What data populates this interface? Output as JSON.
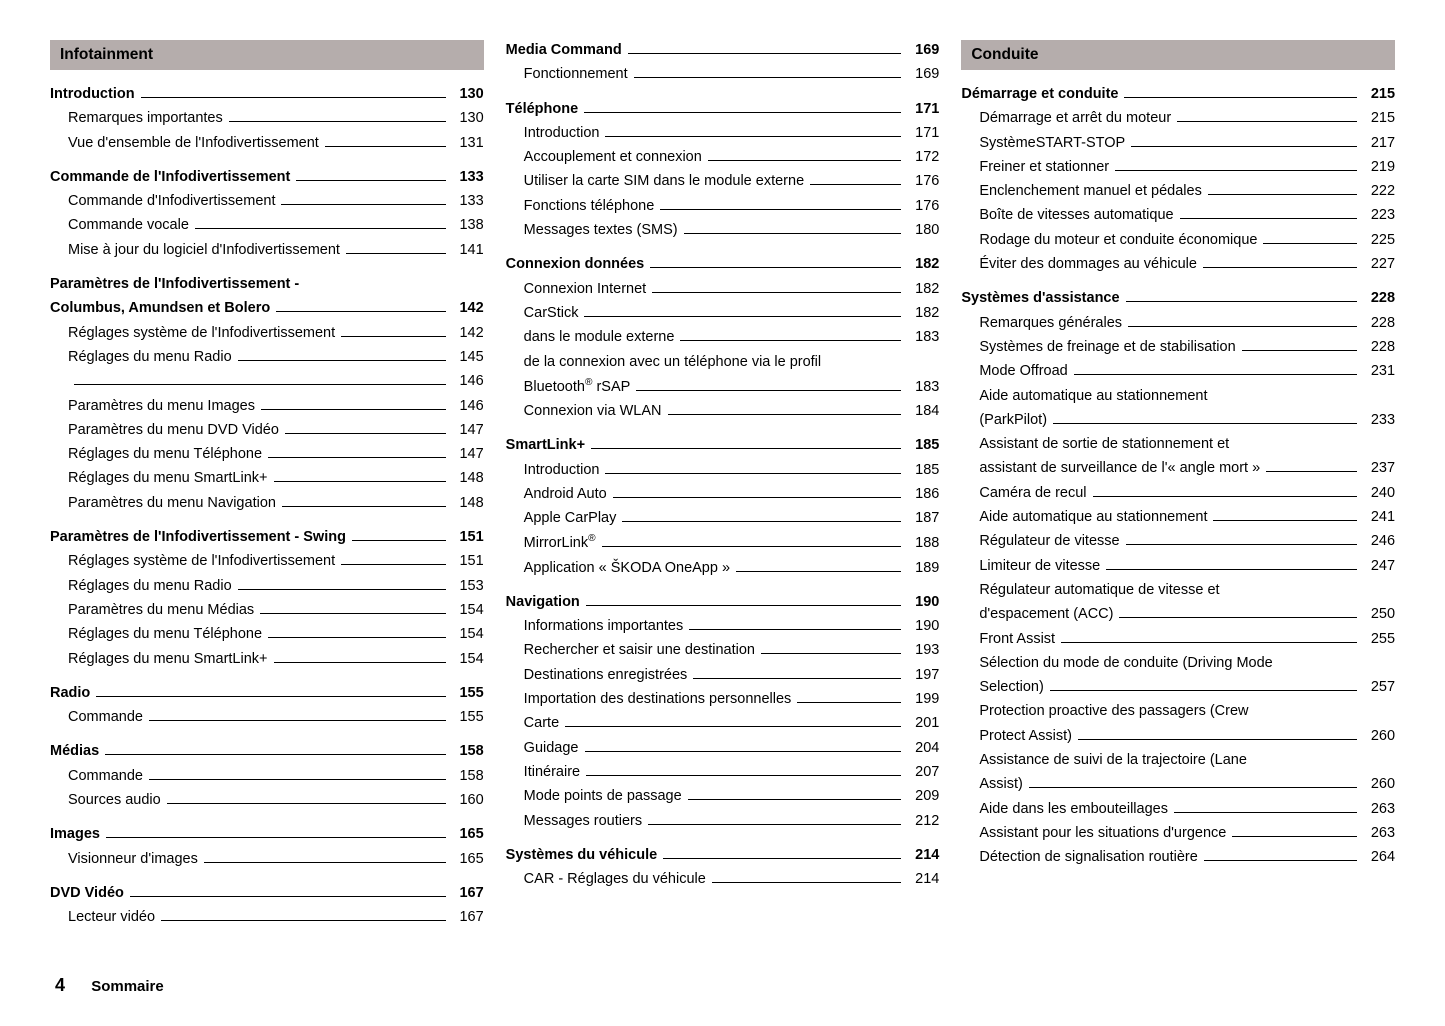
{
  "footer": {
    "page_number": "4",
    "title": "Sommaire"
  },
  "headers": {
    "col1": "Infotainment",
    "col3": "Conduite"
  },
  "col1": [
    {
      "type": "gap"
    },
    {
      "label": "Introduction",
      "page": "130",
      "bold": true
    },
    {
      "label": "Remarques importantes",
      "page": "130",
      "sub": true
    },
    {
      "label": "Vue d'ensemble de l'Infodivertissement",
      "page": "131",
      "sub": true
    },
    {
      "type": "gap"
    },
    {
      "label": "Commande de l'Infodivertissement",
      "page": "133",
      "bold": true
    },
    {
      "label": "Commande d'Infodivertissement",
      "page": "133",
      "sub": true
    },
    {
      "label": "Commande vocale",
      "page": "138",
      "sub": true
    },
    {
      "label": "Mise à jour du logiciel d'Infodivertissement",
      "page": "141",
      "sub": true
    },
    {
      "type": "gap"
    },
    {
      "label": "Paramètres de l'Infodivertissement -",
      "bold": true,
      "nol": true
    },
    {
      "label": "Columbus, Amundsen et Bolero",
      "page": "142",
      "bold": true
    },
    {
      "label": "Réglages système de l'Infodivertissement",
      "page": "142",
      "sub": true
    },
    {
      "label": "Réglages du menu Radio",
      "page": "145",
      "sub": true
    },
    {
      "label": "",
      "page": "146",
      "sub": true
    },
    {
      "label": "Paramètres du menu Images",
      "page": "146",
      "sub": true
    },
    {
      "label": "Paramètres du menu DVD Vidéo",
      "page": "147",
      "sub": true
    },
    {
      "label": "Réglages du menu Téléphone",
      "page": "147",
      "sub": true
    },
    {
      "label": "Réglages du menu SmartLink+",
      "page": "148",
      "sub": true
    },
    {
      "label": "Paramètres du menu Navigation",
      "page": "148",
      "sub": true
    },
    {
      "type": "gap"
    },
    {
      "label": "Paramètres de l'Infodivertissement - Swing",
      "page": "151",
      "bold": true
    },
    {
      "label": "Réglages système de l'Infodivertissement",
      "page": "151",
      "sub": true
    },
    {
      "label": "Réglages du menu Radio",
      "page": "153",
      "sub": true
    },
    {
      "label": "Paramètres du menu Médias",
      "page": "154",
      "sub": true
    },
    {
      "label": "Réglages du menu Téléphone",
      "page": "154",
      "sub": true
    },
    {
      "label": "Réglages du menu SmartLink+",
      "page": "154",
      "sub": true
    },
    {
      "type": "gap"
    },
    {
      "label": "Radio",
      "page": "155",
      "bold": true
    },
    {
      "label": "Commande",
      "page": "155",
      "sub": true
    },
    {
      "type": "gap"
    },
    {
      "label": "Médias",
      "page": "158",
      "bold": true
    },
    {
      "label": "Commande",
      "page": "158",
      "sub": true
    },
    {
      "label": "Sources audio",
      "page": "160",
      "sub": true
    },
    {
      "type": "gap"
    },
    {
      "label": "Images",
      "page": "165",
      "bold": true
    },
    {
      "label": "Visionneur d'images",
      "page": "165",
      "sub": true
    },
    {
      "type": "gap"
    },
    {
      "label": "DVD Vidéo",
      "page": "167",
      "bold": true
    },
    {
      "label": "Lecteur vidéo",
      "page": "167",
      "sub": true
    }
  ],
  "col2": [
    {
      "label": "Media Command",
      "page": "169",
      "bold": true
    },
    {
      "label": "Fonctionnement",
      "page": "169",
      "sub": true
    },
    {
      "type": "gap"
    },
    {
      "label": "Téléphone",
      "page": "171",
      "bold": true
    },
    {
      "label": "Introduction",
      "page": "171",
      "sub": true
    },
    {
      "label": "Accouplement et connexion",
      "page": "172",
      "sub": true
    },
    {
      "label": "Utiliser la carte SIM dans le module externe",
      "page": "176",
      "sub": true
    },
    {
      "label": "Fonctions téléphone",
      "page": "176",
      "sub": true
    },
    {
      "label": "Messages textes (SMS)",
      "page": "180",
      "sub": true
    },
    {
      "type": "gap"
    },
    {
      "label": "Connexion données",
      "page": "182",
      "bold": true
    },
    {
      "label": "Connexion Internet",
      "page": "182",
      "sub": true
    },
    {
      "label": "CarStick",
      "page": "182",
      "sub": true
    },
    {
      "label": "dans le module externe",
      "page": "183",
      "sub": true
    },
    {
      "label": "de la connexion avec un téléphone via le profil",
      "sub": true,
      "nol": true
    },
    {
      "label": "Bluetooth<sup>®</sup> rSAP",
      "page": "183",
      "sub": true,
      "html": true
    },
    {
      "label": "Connexion via WLAN",
      "page": "184",
      "sub": true
    },
    {
      "type": "gap"
    },
    {
      "label": "SmartLink+",
      "page": "185",
      "bold": true
    },
    {
      "label": "Introduction",
      "page": "185",
      "sub": true
    },
    {
      "label": "Android Auto",
      "page": "186",
      "sub": true
    },
    {
      "label": "Apple CarPlay",
      "page": "187",
      "sub": true
    },
    {
      "label": "MirrorLink<sup>®</sup>",
      "page": "188",
      "sub": true,
      "html": true
    },
    {
      "label": "Application « ŠKODA OneApp »",
      "page": "189",
      "sub": true
    },
    {
      "type": "gap"
    },
    {
      "label": "Navigation",
      "page": "190",
      "bold": true
    },
    {
      "label": "Informations importantes",
      "page": "190",
      "sub": true
    },
    {
      "label": "Rechercher et saisir une destination",
      "page": "193",
      "sub": true
    },
    {
      "label": "Destinations enregistrées",
      "page": "197",
      "sub": true
    },
    {
      "label": "Importation des destinations personnelles",
      "page": "199",
      "sub": true
    },
    {
      "label": "Carte",
      "page": "201",
      "sub": true
    },
    {
      "label": "Guidage",
      "page": "204",
      "sub": true
    },
    {
      "label": "Itinéraire",
      "page": "207",
      "sub": true
    },
    {
      "label": "Mode points de passage",
      "page": "209",
      "sub": true
    },
    {
      "label": "Messages routiers",
      "page": "212",
      "sub": true
    },
    {
      "type": "gap"
    },
    {
      "label": "Systèmes du véhicule",
      "page": "214",
      "bold": true
    },
    {
      "label": "CAR - Réglages du véhicule",
      "page": "214",
      "sub": true
    }
  ],
  "col3": [
    {
      "type": "gap"
    },
    {
      "label": "Démarrage et conduite",
      "page": "215",
      "bold": true
    },
    {
      "label": "Démarrage et arrêt du moteur",
      "page": "215",
      "sub": true
    },
    {
      "label": "SystèmeSTART-STOP",
      "page": "217",
      "sub": true
    },
    {
      "label": "Freiner et stationner",
      "page": "219",
      "sub": true
    },
    {
      "label": "Enclenchement manuel et pédales",
      "page": "222",
      "sub": true
    },
    {
      "label": "Boîte de vitesses automatique",
      "page": "223",
      "sub": true
    },
    {
      "label": "Rodage du moteur et conduite économique",
      "page": "225",
      "sub": true
    },
    {
      "label": "Éviter des dommages au véhicule",
      "page": "227",
      "sub": true
    },
    {
      "type": "gap"
    },
    {
      "label": "Systèmes d'assistance",
      "page": "228",
      "bold": true
    },
    {
      "label": "Remarques générales",
      "page": "228",
      "sub": true
    },
    {
      "label": "Systèmes de freinage et de stabilisation",
      "page": "228",
      "sub": true
    },
    {
      "label": "Mode Offroad",
      "page": "231",
      "sub": true
    },
    {
      "label": "Aide automatique au stationnement",
      "sub": true,
      "nol": true
    },
    {
      "label": "(ParkPilot)",
      "page": "233",
      "sub": true
    },
    {
      "label": "Assistant de sortie de stationnement et",
      "sub": true,
      "nol": true
    },
    {
      "label": "assistant de surveillance de l'« angle mort »",
      "page": "237",
      "sub": true
    },
    {
      "label": "Caméra de recul",
      "page": "240",
      "sub": true
    },
    {
      "label": "Aide automatique au stationnement",
      "page": "241",
      "sub": true
    },
    {
      "label": "Régulateur de vitesse",
      "page": "246",
      "sub": true
    },
    {
      "label": "Limiteur de vitesse",
      "page": "247",
      "sub": true
    },
    {
      "label": "Régulateur automatique de vitesse et",
      "sub": true,
      "nol": true
    },
    {
      "label": "d'espacement (ACC)",
      "page": "250",
      "sub": true
    },
    {
      "label": "Front Assist",
      "page": "255",
      "sub": true
    },
    {
      "label": "Sélection du mode de conduite (Driving Mode",
      "sub": true,
      "nol": true
    },
    {
      "label": "Selection)",
      "page": "257",
      "sub": true
    },
    {
      "label": "Protection proactive des passagers (Crew",
      "sub": true,
      "nol": true
    },
    {
      "label": "Protect Assist)",
      "page": "260",
      "sub": true
    },
    {
      "label": "Assistance de suivi de la trajectoire (Lane",
      "sub": true,
      "nol": true
    },
    {
      "label": "Assist)",
      "page": "260",
      "sub": true
    },
    {
      "label": "Aide dans les embouteillages",
      "page": "263",
      "sub": true
    },
    {
      "label": "Assistant pour les situations d'urgence",
      "page": "263",
      "sub": true
    },
    {
      "label": "Détection de signalisation routière",
      "page": "264",
      "sub": true
    }
  ]
}
